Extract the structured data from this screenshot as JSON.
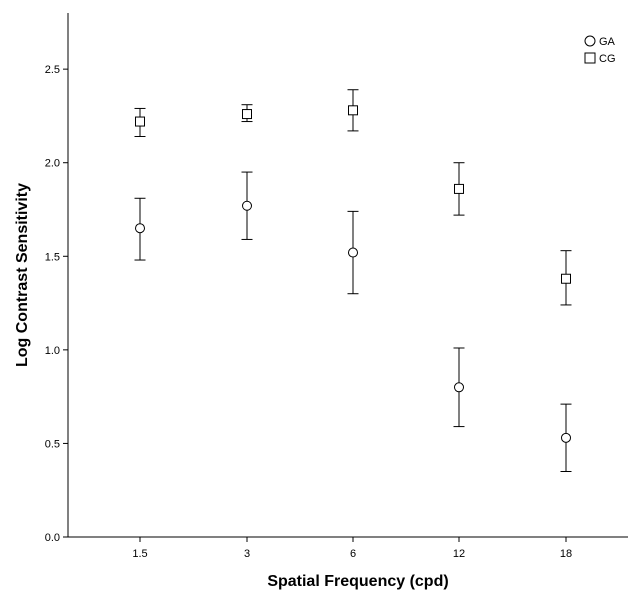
{
  "chart_data": {
    "type": "scatter",
    "title": "",
    "xlabel": "Spatial Frequency (cpd)",
    "ylabel": "Log Contrast Sensitivity",
    "categories": [
      "1.5",
      "3",
      "6",
      "12",
      "18"
    ],
    "ylim": [
      0.0,
      2.8
    ],
    "yticks": [
      "0.0",
      "0.5",
      "1.0",
      "1.5",
      "2.0",
      "2.5"
    ],
    "ytick_values": [
      0.0,
      0.5,
      1.0,
      1.5,
      2.0,
      2.5
    ],
    "grid": false,
    "legend_position": "top-right",
    "error_bars": true,
    "series": [
      {
        "name": "GA",
        "marker": "circle",
        "values": [
          1.65,
          1.77,
          1.52,
          0.8,
          0.53
        ],
        "error_low": [
          1.48,
          1.59,
          1.3,
          0.59,
          0.35
        ],
        "error_high": [
          1.81,
          1.95,
          1.74,
          1.01,
          0.71
        ]
      },
      {
        "name": "CG",
        "marker": "square",
        "values": [
          2.22,
          2.26,
          2.28,
          1.86,
          1.38
        ],
        "error_low": [
          2.14,
          2.22,
          2.17,
          1.72,
          1.24
        ],
        "error_high": [
          2.29,
          2.31,
          2.39,
          2.0,
          1.53
        ]
      }
    ]
  }
}
